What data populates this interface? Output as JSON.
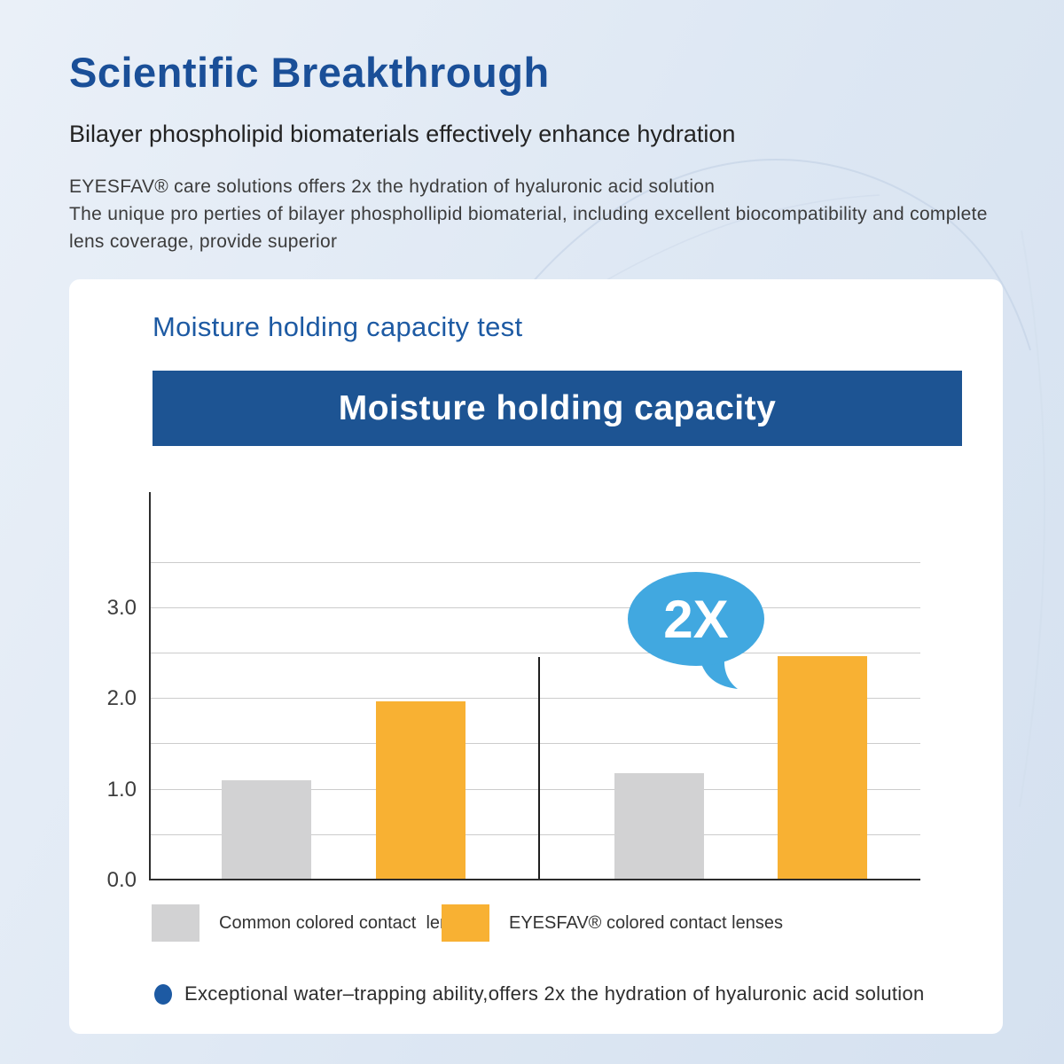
{
  "page": {
    "title": "Scientific Breakthrough",
    "subtitle": "Bilayer phospholipid biomaterials effectively enhance hydration",
    "body_lines": [
      "EYESFAV® care solutions offers 2x the hydration of hyaluronic acid solution",
      "The unique pro perties of bilayer phosphollipid biomaterial, including excellent biocompatibility and complete",
      "lens coverage, provide superior"
    ]
  },
  "card": {
    "heading": "Moisture holding capacity test",
    "banner_title": "Moisture holding capacity",
    "bullet_text": "Exceptional water–trapping ability,offers 2x the hydration of hyaluronic acid solution"
  },
  "chart_data": {
    "type": "bar",
    "title": "Moisture holding capacity",
    "groups": [
      "left comparison group",
      "right comparison group"
    ],
    "series": [
      {
        "name": "Common colored contact  lenses",
        "color": "#d2d2d3",
        "values": [
          1.08,
          1.16
        ]
      },
      {
        "name": "EYESFAV® colored contact lenses",
        "color": "#f8b133",
        "values": [
          1.95,
          2.45
        ]
      }
    ],
    "yticks": [
      0.0,
      1.0,
      2.0,
      3.0
    ],
    "ylim": [
      0,
      4.3
    ],
    "grid_max": 3.5,
    "gridline_step": 0.5,
    "grid": true,
    "legend_position": "bottom",
    "annotation": "2X",
    "annotation_note": "speech bubble above second EYESFAV bar"
  },
  "colors": {
    "title_blue": "#1a4f98",
    "heading_blue": "#1d5aa3",
    "banner_blue": "#1d5493",
    "bar_gray": "#d2d2d3",
    "bar_yellow": "#f8b133",
    "bubble_blue": "#41a8e0",
    "bullet_blue": "#1d5aa3",
    "page_bg": "#dde7f3",
    "card_bg": "#ffffff"
  }
}
